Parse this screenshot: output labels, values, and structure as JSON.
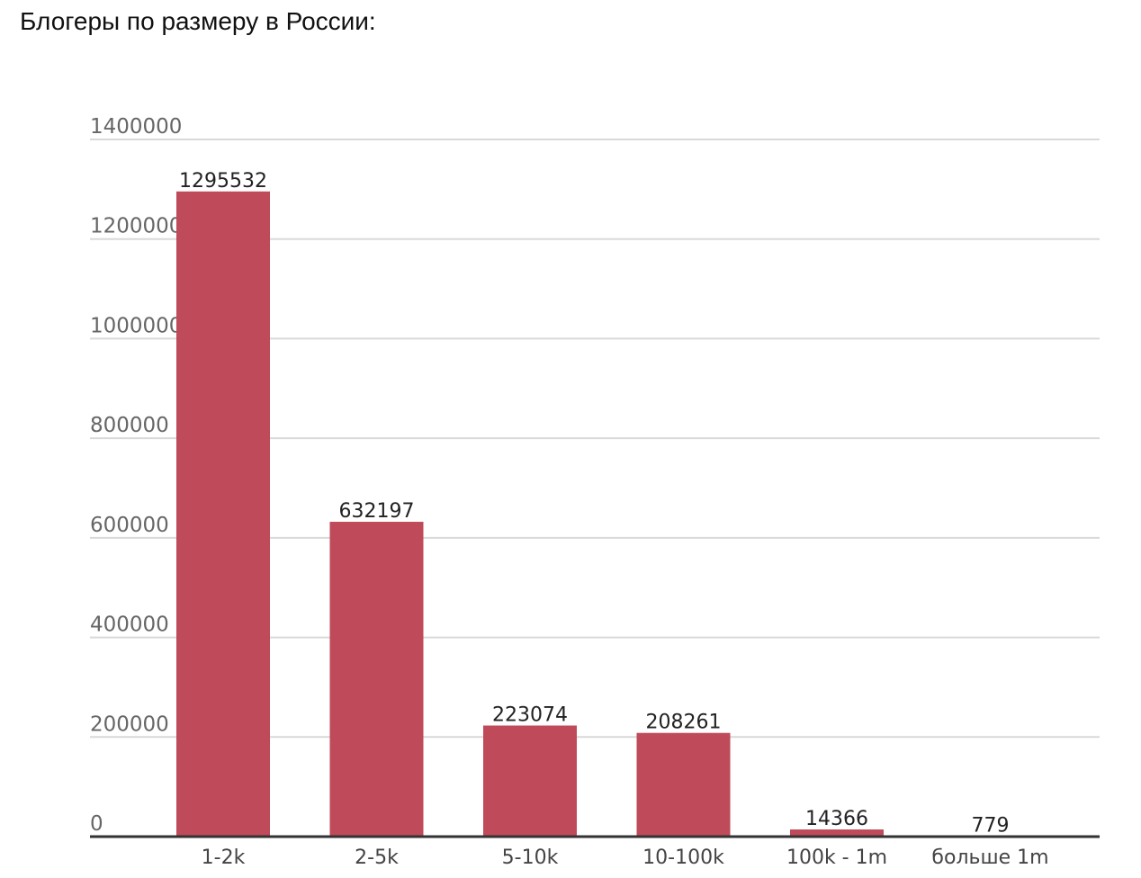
{
  "title": "Блогеры по размеру в России:",
  "chart_data": {
    "type": "bar",
    "categories": [
      "1-2k",
      "2-5k",
      "5-10k",
      "10-100k",
      "100k - 1m",
      "больше 1m"
    ],
    "values": [
      1295532,
      632197,
      223074,
      208261,
      14366,
      779
    ],
    "data_labels": [
      "1295532",
      "632197",
      "223074",
      "208261",
      "14366",
      "779"
    ],
    "y_ticks": [
      0,
      200000,
      400000,
      600000,
      800000,
      1000000,
      1200000,
      1400000
    ],
    "y_tick_labels": [
      "0",
      "200000",
      "400000",
      "600000",
      "800000",
      "1000000",
      "1200000",
      "1400000"
    ],
    "ylim": [
      0,
      1400000
    ],
    "grid": true,
    "legend": "none",
    "colors": {
      "bar": "#bf4a59",
      "grid": "#d9d9d9",
      "axis": "#333333",
      "tick_label": "#666666",
      "data_label": "#222222",
      "category_label": "#444444"
    }
  }
}
